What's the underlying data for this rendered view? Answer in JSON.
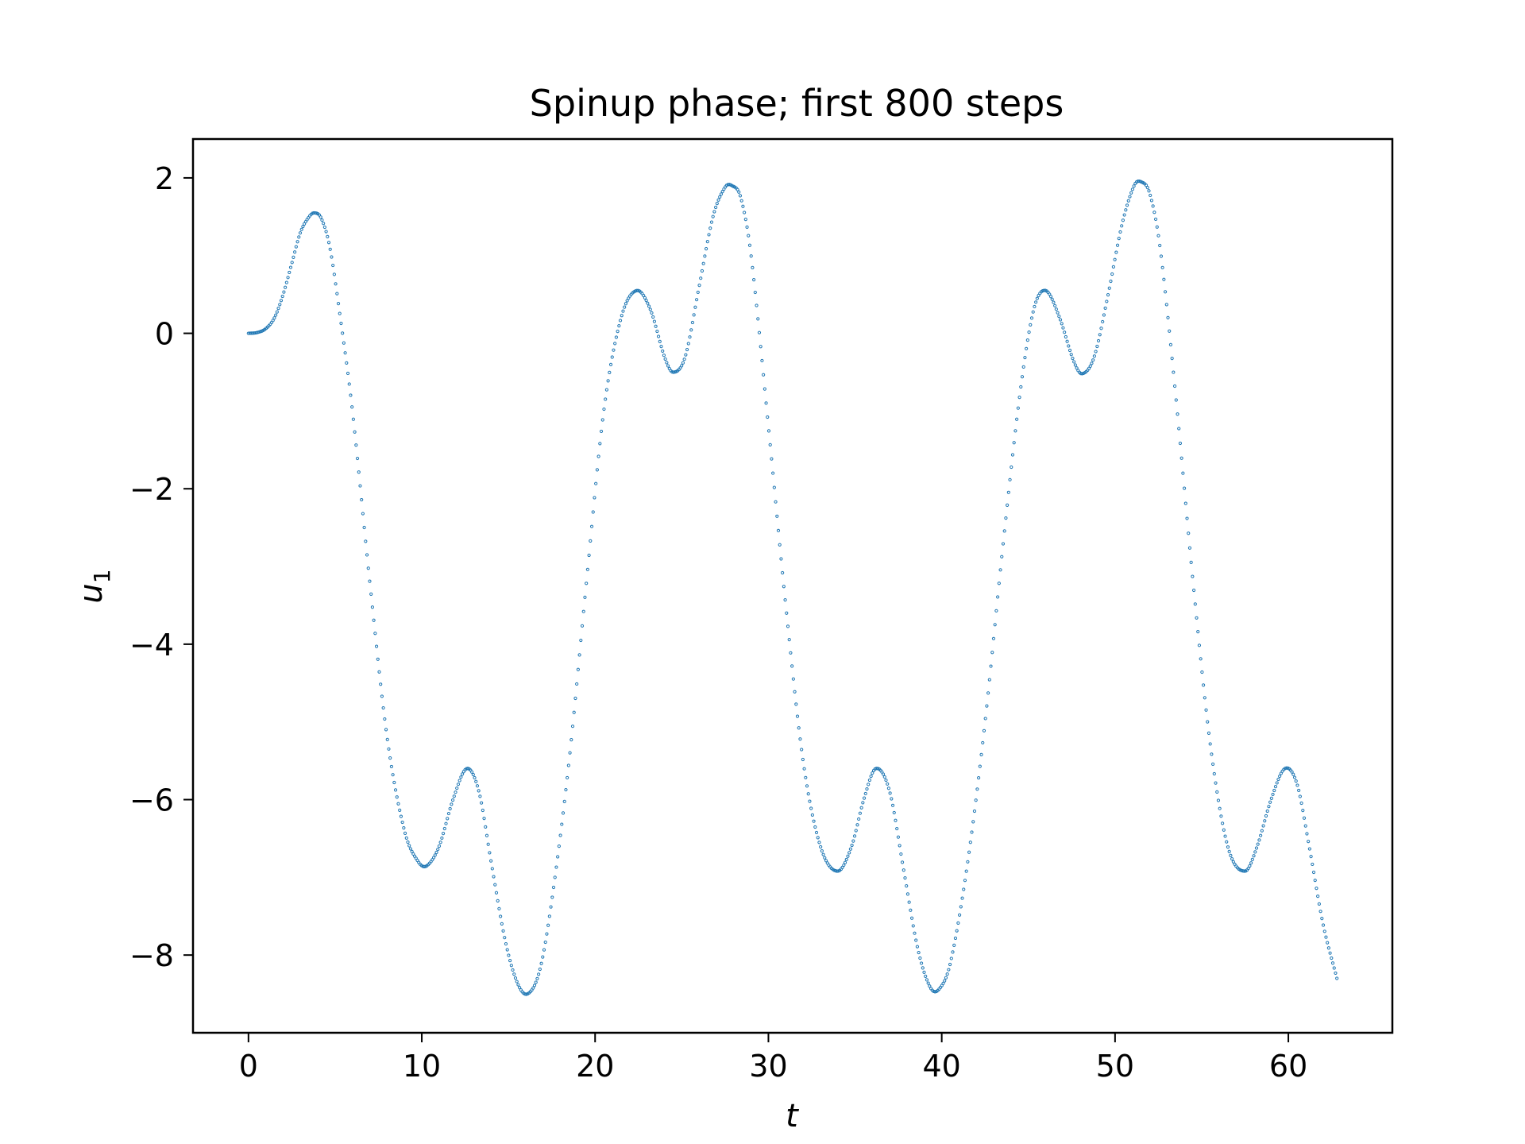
{
  "chart_data": {
    "type": "scatter",
    "title": "Spinup phase; first 800 steps",
    "xlabel": "t",
    "ylabel": "u",
    "ylabel_subscript": "1",
    "xlim": [
      -3.2,
      66.0
    ],
    "ylim": [
      -9.0,
      2.5
    ],
    "xticks": [
      0,
      10,
      20,
      30,
      40,
      50,
      60
    ],
    "yticks": [
      2,
      0,
      -2,
      -4,
      -6,
      -8
    ],
    "ytick_labels": [
      "2",
      "0",
      "−2",
      "−4",
      "−6",
      "−8"
    ],
    "grid": false,
    "legend": "none",
    "marker_color": "#1f77b4",
    "series": [
      {
        "x_start": 0,
        "x_end": 62.8,
        "n_points": 800,
        "keypoints": [
          [
            0.0,
            0.0
          ],
          [
            0.5,
            0.01
          ],
          [
            1.0,
            0.06
          ],
          [
            1.5,
            0.2
          ],
          [
            2.0,
            0.5
          ],
          [
            2.5,
            0.9
          ],
          [
            3.0,
            1.3
          ],
          [
            3.5,
            1.5
          ],
          [
            3.8,
            1.55
          ],
          [
            4.2,
            1.48
          ],
          [
            4.7,
            1.1
          ],
          [
            5.3,
            0.2
          ],
          [
            6.0,
            -1.0
          ],
          [
            7.0,
            -3.2
          ],
          [
            8.0,
            -5.2
          ],
          [
            9.0,
            -6.4
          ],
          [
            9.8,
            -6.8
          ],
          [
            10.3,
            -6.85
          ],
          [
            11.0,
            -6.6
          ],
          [
            11.8,
            -6.0
          ],
          [
            12.6,
            -5.6
          ],
          [
            13.3,
            -5.9
          ],
          [
            14.0,
            -6.8
          ],
          [
            14.8,
            -7.8
          ],
          [
            15.5,
            -8.35
          ],
          [
            16.1,
            -8.5
          ],
          [
            16.8,
            -8.2
          ],
          [
            17.5,
            -7.3
          ],
          [
            18.5,
            -5.5
          ],
          [
            19.5,
            -3.2
          ],
          [
            20.5,
            -1.0
          ],
          [
            21.5,
            0.2
          ],
          [
            22.4,
            0.55
          ],
          [
            23.2,
            0.3
          ],
          [
            24.0,
            -0.3
          ],
          [
            24.5,
            -0.5
          ],
          [
            25.2,
            -0.3
          ],
          [
            26.0,
            0.6
          ],
          [
            26.8,
            1.5
          ],
          [
            27.5,
            1.88
          ],
          [
            27.9,
            1.9
          ],
          [
            28.4,
            1.75
          ],
          [
            29.0,
            1.0
          ],
          [
            30.0,
            -1.2
          ],
          [
            31.0,
            -3.5
          ],
          [
            32.0,
            -5.5
          ],
          [
            33.0,
            -6.6
          ],
          [
            34.0,
            -6.92
          ],
          [
            34.8,
            -6.6
          ],
          [
            35.5,
            -6.0
          ],
          [
            36.2,
            -5.6
          ],
          [
            37.0,
            -5.9
          ],
          [
            37.8,
            -6.9
          ],
          [
            38.6,
            -7.9
          ],
          [
            39.3,
            -8.4
          ],
          [
            39.8,
            -8.45
          ],
          [
            40.5,
            -8.1
          ],
          [
            41.5,
            -6.8
          ],
          [
            42.5,
            -5.0
          ],
          [
            43.5,
            -2.8
          ],
          [
            44.5,
            -0.8
          ],
          [
            45.3,
            0.3
          ],
          [
            46.0,
            0.55
          ],
          [
            46.8,
            0.2
          ],
          [
            47.6,
            -0.35
          ],
          [
            48.1,
            -0.52
          ],
          [
            48.8,
            -0.3
          ],
          [
            49.6,
            0.5
          ],
          [
            50.4,
            1.4
          ],
          [
            51.1,
            1.9
          ],
          [
            51.5,
            1.95
          ],
          [
            52.0,
            1.8
          ],
          [
            52.6,
            1.1
          ],
          [
            53.5,
            -0.8
          ],
          [
            54.5,
            -3.2
          ],
          [
            55.5,
            -5.3
          ],
          [
            56.5,
            -6.6
          ],
          [
            57.5,
            -6.92
          ],
          [
            58.2,
            -6.6
          ],
          [
            59.0,
            -6.0
          ],
          [
            59.8,
            -5.6
          ],
          [
            60.5,
            -5.8
          ],
          [
            61.2,
            -6.6
          ],
          [
            62.0,
            -7.6
          ],
          [
            62.8,
            -8.3
          ]
        ]
      }
    ]
  }
}
